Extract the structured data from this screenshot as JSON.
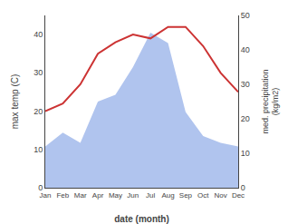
{
  "chart_data": {
    "type": "line",
    "xlabel": "date (month)",
    "ylabel": "max temp (C)",
    "y2label": "med. precipitation\n(kg/m2)",
    "categories": [
      "Jan",
      "Feb",
      "Mar",
      "Apr",
      "May",
      "Jun",
      "Jul",
      "Aug",
      "Sep",
      "Oct",
      "Nov",
      "Dec"
    ],
    "series": [
      {
        "type": "area",
        "axis": "y2",
        "color": "#b0c4ee",
        "values": [
          12,
          16,
          13,
          25,
          27,
          35,
          45,
          42,
          22,
          15,
          13,
          12
        ]
      },
      {
        "type": "line",
        "axis": "y",
        "color": "#cc3333",
        "values": [
          20,
          22,
          27,
          35,
          38,
          40,
          39,
          42,
          42,
          37,
          30,
          25
        ]
      }
    ],
    "ylim": [
      0,
      45
    ],
    "yticks": [
      0,
      10,
      20,
      30,
      40
    ],
    "y2lim": [
      0,
      50
    ],
    "y2ticks": [
      0,
      10,
      20,
      30,
      40,
      50
    ],
    "grid": false
  }
}
